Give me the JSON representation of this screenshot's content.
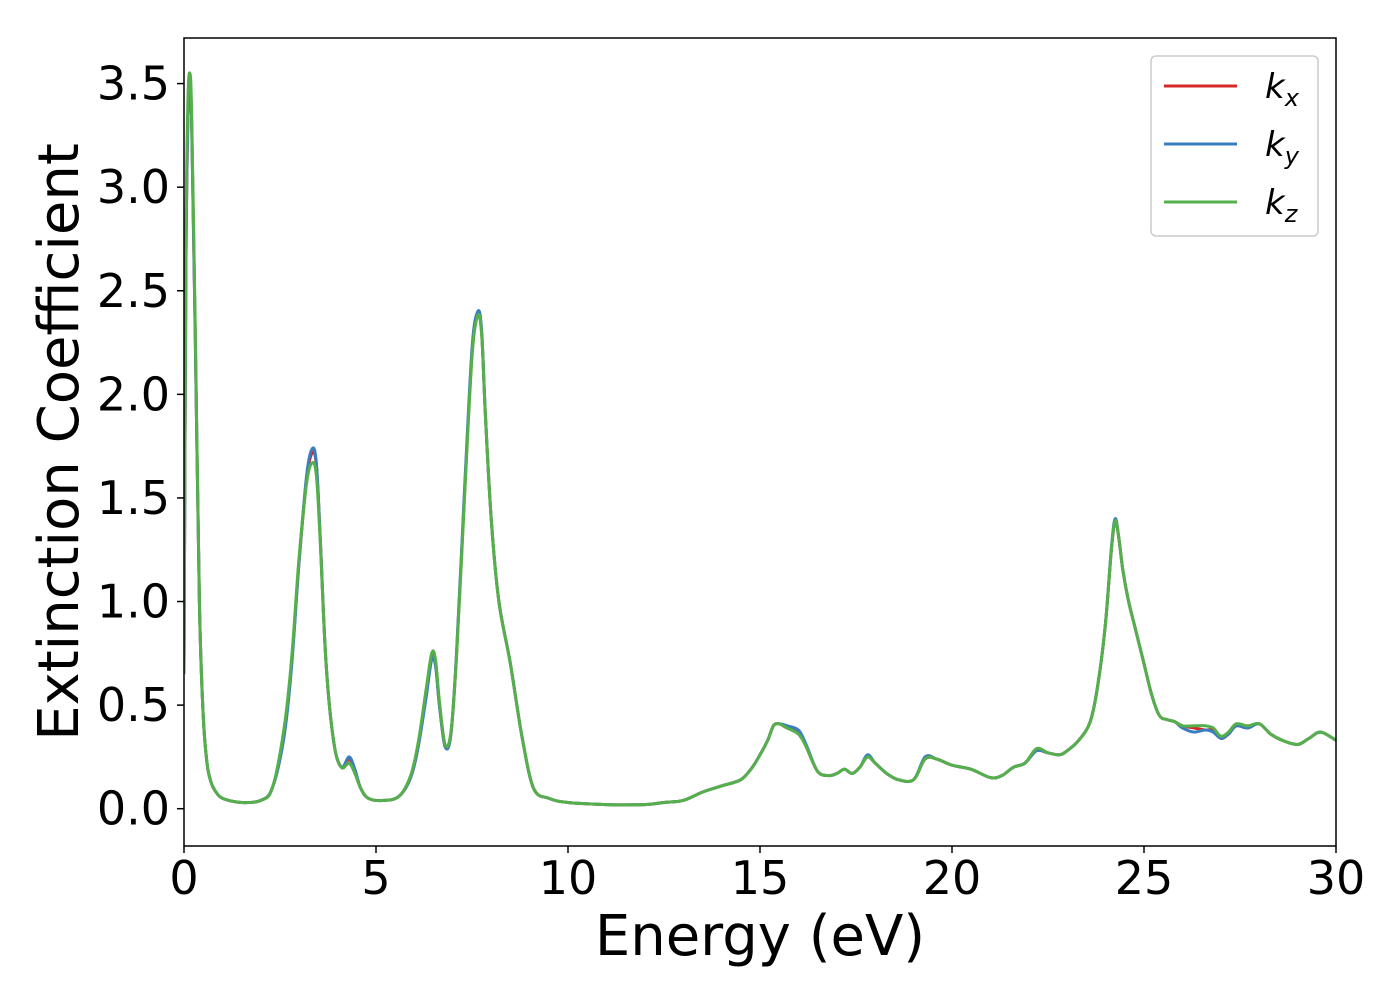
{
  "chart_data": {
    "type": "line",
    "xlabel": "Energy (eV)",
    "ylabel": "Extinction Coefficient",
    "xlim": [
      0,
      30
    ],
    "ylim": [
      -0.18,
      3.72
    ],
    "xticks": [
      "0",
      "5",
      "10",
      "15",
      "20",
      "25",
      "30"
    ],
    "yticks": [
      "0.0",
      "0.5",
      "1.0",
      "1.5",
      "2.0",
      "2.5",
      "3.0",
      "3.5"
    ],
    "legend_position": "top-right",
    "grid": false,
    "legend": [
      {
        "base": "k",
        "sub": "x",
        "color": "#d62728"
      },
      {
        "base": "k",
        "sub": "y",
        "color": "#3a7ebf"
      },
      {
        "base": "k",
        "sub": "z",
        "color": "#55b04c"
      }
    ],
    "series": [
      {
        "name": "kx",
        "color": "#d62728",
        "x": [
          0.0,
          0.05,
          0.1,
          0.15,
          0.2,
          0.3,
          0.4,
          0.5,
          0.6,
          0.7,
          0.8,
          1.0,
          1.5,
          2.0,
          2.3,
          2.6,
          2.8,
          3.0,
          3.2,
          3.35,
          3.45,
          3.55,
          3.7,
          3.9,
          4.1,
          4.3,
          4.45,
          4.6,
          4.8,
          5.2,
          5.6,
          5.9,
          6.1,
          6.3,
          6.45,
          6.55,
          6.65,
          6.8,
          6.95,
          7.1,
          7.3,
          7.5,
          7.65,
          7.75,
          7.85,
          8.0,
          8.2,
          8.5,
          8.8,
          9.1,
          9.5,
          10.0,
          11.0,
          12.0,
          12.5,
          13.0,
          13.5,
          14.0,
          14.5,
          14.8,
          15.0,
          15.2,
          15.35,
          15.5,
          15.7,
          16.0,
          16.2,
          16.5,
          16.8,
          17.0,
          17.2,
          17.4,
          17.6,
          17.8,
          18.0,
          18.3,
          18.6,
          19.0,
          19.3,
          19.6,
          20.0,
          20.5,
          21.0,
          21.3,
          21.6,
          21.9,
          22.2,
          22.5,
          22.8,
          23.0,
          23.3,
          23.6,
          23.8,
          24.0,
          24.15,
          24.25,
          24.35,
          24.45,
          24.6,
          24.8,
          25.0,
          25.2,
          25.4,
          25.6,
          25.8,
          26.0,
          26.3,
          26.6,
          26.8,
          27.0,
          27.2,
          27.4,
          27.7,
          28.0,
          28.3,
          28.6,
          29.0,
          29.3,
          29.6,
          30.0
        ],
        "y": [
          0.65,
          2.6,
          3.3,
          3.52,
          3.3,
          2.2,
          1.0,
          0.45,
          0.22,
          0.13,
          0.09,
          0.05,
          0.03,
          0.04,
          0.1,
          0.35,
          0.7,
          1.2,
          1.6,
          1.72,
          1.65,
          1.3,
          0.7,
          0.32,
          0.2,
          0.24,
          0.18,
          0.1,
          0.05,
          0.04,
          0.06,
          0.15,
          0.3,
          0.55,
          0.73,
          0.7,
          0.5,
          0.3,
          0.36,
          0.75,
          1.5,
          2.2,
          2.39,
          2.3,
          1.9,
          1.4,
          1.0,
          0.7,
          0.35,
          0.1,
          0.05,
          0.03,
          0.02,
          0.02,
          0.03,
          0.04,
          0.08,
          0.11,
          0.14,
          0.2,
          0.26,
          0.33,
          0.4,
          0.41,
          0.39,
          0.37,
          0.3,
          0.18,
          0.16,
          0.17,
          0.19,
          0.17,
          0.2,
          0.25,
          0.22,
          0.17,
          0.14,
          0.14,
          0.24,
          0.24,
          0.21,
          0.19,
          0.15,
          0.16,
          0.2,
          0.22,
          0.28,
          0.27,
          0.26,
          0.28,
          0.33,
          0.42,
          0.6,
          0.9,
          1.25,
          1.39,
          1.3,
          1.15,
          1.0,
          0.85,
          0.7,
          0.55,
          0.45,
          0.43,
          0.42,
          0.4,
          0.39,
          0.38,
          0.38,
          0.34,
          0.36,
          0.4,
          0.39,
          0.41,
          0.36,
          0.33,
          0.31,
          0.34,
          0.37,
          0.33
        ],
        "stroke_width": 3
      },
      {
        "name": "ky",
        "color": "#3a7ebf",
        "x": [
          0.0,
          0.05,
          0.1,
          0.15,
          0.2,
          0.3,
          0.4,
          0.5,
          0.6,
          0.7,
          0.8,
          1.0,
          1.5,
          2.0,
          2.3,
          2.6,
          2.8,
          3.0,
          3.2,
          3.35,
          3.45,
          3.55,
          3.7,
          3.9,
          4.1,
          4.3,
          4.45,
          4.6,
          4.8,
          5.2,
          5.6,
          5.9,
          6.1,
          6.3,
          6.45,
          6.55,
          6.65,
          6.8,
          6.95,
          7.1,
          7.3,
          7.5,
          7.65,
          7.75,
          7.85,
          8.0,
          8.2,
          8.5,
          8.8,
          9.1,
          9.5,
          10.0,
          11.0,
          12.0,
          12.5,
          13.0,
          13.5,
          14.0,
          14.5,
          14.8,
          15.0,
          15.2,
          15.35,
          15.5,
          15.7,
          16.0,
          16.2,
          16.5,
          16.8,
          17.0,
          17.2,
          17.4,
          17.6,
          17.8,
          18.0,
          18.3,
          18.6,
          19.0,
          19.3,
          19.6,
          20.0,
          20.5,
          21.0,
          21.3,
          21.6,
          21.9,
          22.2,
          22.5,
          22.8,
          23.0,
          23.3,
          23.6,
          23.8,
          24.0,
          24.15,
          24.25,
          24.35,
          24.45,
          24.6,
          24.8,
          25.0,
          25.2,
          25.4,
          25.6,
          25.8,
          26.0,
          26.3,
          26.6,
          26.8,
          27.0,
          27.2,
          27.4,
          27.7,
          28.0,
          28.3,
          28.6,
          29.0,
          29.3,
          29.6,
          30.0
        ],
        "y": [
          0.65,
          2.6,
          3.3,
          3.5,
          3.3,
          2.2,
          1.0,
          0.45,
          0.22,
          0.13,
          0.09,
          0.05,
          0.03,
          0.04,
          0.1,
          0.34,
          0.68,
          1.2,
          1.62,
          1.74,
          1.66,
          1.3,
          0.7,
          0.32,
          0.2,
          0.25,
          0.19,
          0.1,
          0.05,
          0.04,
          0.06,
          0.15,
          0.3,
          0.53,
          0.72,
          0.69,
          0.5,
          0.3,
          0.36,
          0.76,
          1.52,
          2.22,
          2.4,
          2.31,
          1.9,
          1.4,
          1.0,
          0.7,
          0.35,
          0.1,
          0.05,
          0.03,
          0.02,
          0.02,
          0.03,
          0.04,
          0.08,
          0.11,
          0.14,
          0.2,
          0.26,
          0.33,
          0.4,
          0.41,
          0.4,
          0.38,
          0.31,
          0.18,
          0.16,
          0.17,
          0.19,
          0.17,
          0.2,
          0.26,
          0.22,
          0.17,
          0.14,
          0.14,
          0.25,
          0.24,
          0.21,
          0.19,
          0.15,
          0.16,
          0.2,
          0.22,
          0.28,
          0.27,
          0.26,
          0.28,
          0.33,
          0.42,
          0.6,
          0.9,
          1.26,
          1.4,
          1.3,
          1.15,
          1.0,
          0.85,
          0.7,
          0.55,
          0.45,
          0.43,
          0.42,
          0.39,
          0.37,
          0.38,
          0.37,
          0.34,
          0.36,
          0.4,
          0.39,
          0.41,
          0.36,
          0.33,
          0.31,
          0.34,
          0.37,
          0.33
        ],
        "stroke_width": 3
      },
      {
        "name": "kz",
        "color": "#55b04c",
        "x": [
          0.0,
          0.05,
          0.1,
          0.15,
          0.2,
          0.3,
          0.4,
          0.5,
          0.6,
          0.7,
          0.8,
          1.0,
          1.5,
          2.0,
          2.3,
          2.6,
          2.8,
          3.0,
          3.2,
          3.35,
          3.45,
          3.55,
          3.7,
          3.9,
          4.1,
          4.3,
          4.45,
          4.6,
          4.8,
          5.2,
          5.6,
          5.9,
          6.1,
          6.3,
          6.45,
          6.55,
          6.65,
          6.8,
          6.95,
          7.1,
          7.3,
          7.5,
          7.65,
          7.75,
          7.85,
          8.0,
          8.2,
          8.5,
          8.8,
          9.1,
          9.5,
          10.0,
          11.0,
          12.0,
          12.5,
          13.0,
          13.5,
          14.0,
          14.5,
          14.8,
          15.0,
          15.2,
          15.35,
          15.5,
          15.7,
          16.0,
          16.2,
          16.5,
          16.8,
          17.0,
          17.2,
          17.4,
          17.6,
          17.8,
          18.0,
          18.3,
          18.6,
          19.0,
          19.3,
          19.6,
          20.0,
          20.5,
          21.0,
          21.3,
          21.6,
          21.9,
          22.2,
          22.5,
          22.8,
          23.0,
          23.3,
          23.6,
          23.8,
          24.0,
          24.15,
          24.25,
          24.35,
          24.45,
          24.6,
          24.8,
          25.0,
          25.2,
          25.4,
          25.6,
          25.8,
          26.0,
          26.3,
          26.6,
          26.8,
          27.0,
          27.2,
          27.4,
          27.7,
          28.0,
          28.3,
          28.6,
          29.0,
          29.3,
          29.6,
          30.0
        ],
        "y": [
          0.65,
          2.7,
          3.4,
          3.55,
          3.35,
          2.25,
          1.0,
          0.45,
          0.22,
          0.13,
          0.09,
          0.05,
          0.03,
          0.04,
          0.1,
          0.38,
          0.72,
          1.22,
          1.58,
          1.67,
          1.6,
          1.28,
          0.7,
          0.32,
          0.2,
          0.22,
          0.17,
          0.1,
          0.05,
          0.04,
          0.06,
          0.16,
          0.32,
          0.57,
          0.75,
          0.72,
          0.52,
          0.31,
          0.37,
          0.74,
          1.48,
          2.18,
          2.38,
          2.29,
          1.9,
          1.4,
          1.0,
          0.7,
          0.35,
          0.1,
          0.05,
          0.03,
          0.02,
          0.02,
          0.03,
          0.04,
          0.08,
          0.11,
          0.14,
          0.2,
          0.26,
          0.33,
          0.4,
          0.41,
          0.39,
          0.36,
          0.3,
          0.18,
          0.16,
          0.17,
          0.19,
          0.17,
          0.2,
          0.25,
          0.22,
          0.17,
          0.14,
          0.14,
          0.24,
          0.24,
          0.21,
          0.19,
          0.15,
          0.16,
          0.2,
          0.22,
          0.29,
          0.27,
          0.26,
          0.28,
          0.33,
          0.42,
          0.6,
          0.9,
          1.25,
          1.39,
          1.3,
          1.15,
          1.0,
          0.85,
          0.7,
          0.55,
          0.45,
          0.43,
          0.42,
          0.4,
          0.4,
          0.4,
          0.39,
          0.35,
          0.37,
          0.41,
          0.4,
          0.41,
          0.36,
          0.33,
          0.31,
          0.34,
          0.37,
          0.33
        ],
        "stroke_width": 3
      }
    ]
  }
}
